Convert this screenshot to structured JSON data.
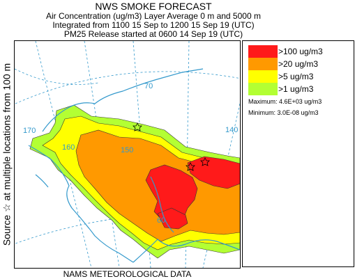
{
  "header": {
    "title": "NWS SMOKE FORECAST",
    "line1": "Air Concentration (ug/m3) Layer Average    0 m and  5000 m",
    "line2": "Integrated from 1100 15 Sep to 1200 15 Sep 19 (UTC)",
    "line3": "PM25 Release started at 0600 14 Sep 19 (UTC)"
  },
  "side_label": "Source ☆  at multiple locations   from   100 m",
  "footer": "NAMS METEOROLOGICAL DATA",
  "legend": {
    "items": [
      {
        "label": ">100 ug/m3",
        "color": "#ff1a1a"
      },
      {
        "label": ">20 ug/m3",
        "color": "#ff9900"
      },
      {
        "label": ">5 ug/m3",
        "color": "#ffff00"
      },
      {
        "label": ">1 ug/m3",
        "color": "#b3ff33"
      }
    ],
    "maximum": "Maximum: 4.6E+03 ug/m3",
    "minimum": "Minimum: 3.0E-08 ug/m3"
  },
  "map": {
    "graticule_labels": [
      "70",
      "170",
      "160",
      "140",
      "150",
      "60"
    ],
    "colors": {
      "coast": "#3399cc",
      "graticule": "#3399cc",
      "level1": "#b3ff33",
      "level2": "#ffff00",
      "level3": "#ff9900",
      "level4": "#ff1a1a"
    }
  }
}
